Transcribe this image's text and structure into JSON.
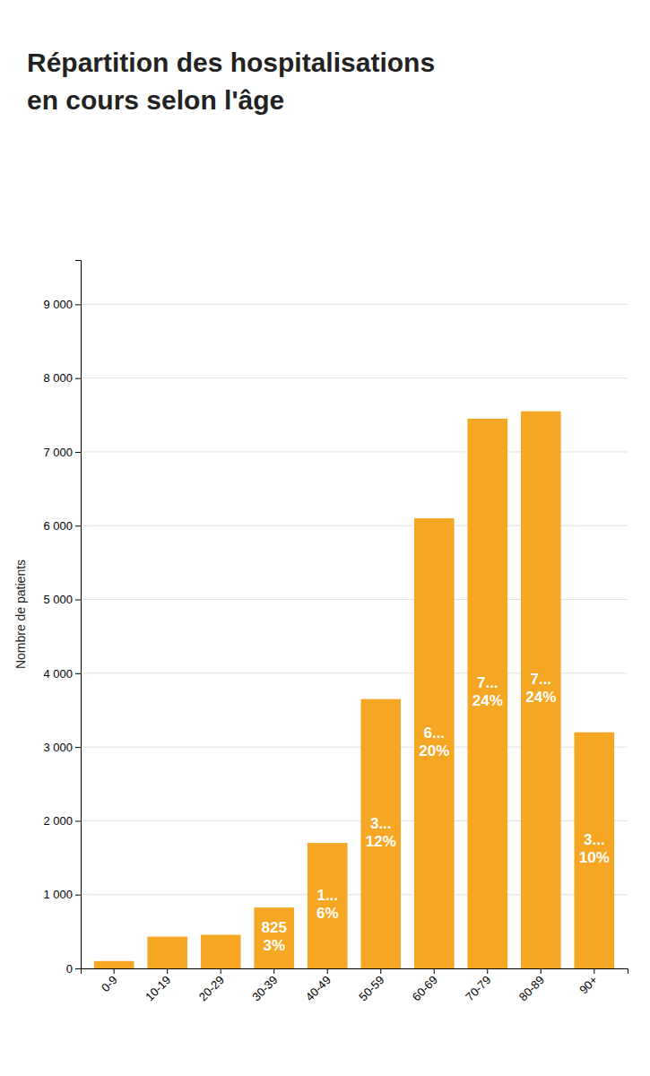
{
  "chart_data": {
    "type": "bar",
    "title": "Répartition des hospitalisations",
    "subtitle": "en cours selon l'âge",
    "y_label": "Nombre de patients",
    "categories": [
      "0-9",
      "10-19",
      "20-29",
      "30-39",
      "40-49",
      "50-59",
      "60-69",
      "70-79",
      "80-89",
      "90+"
    ],
    "values": [
      100,
      430,
      455,
      825,
      1700,
      3650,
      6100,
      7450,
      7550,
      3200
    ],
    "color": "#F5A623",
    "ylim": [
      0,
      9600
    ],
    "yticks": [
      0,
      {
        "value": 1000,
        "label": "1 000"
      },
      {
        "value": 2000,
        "label": "2 000"
      },
      {
        "value": 3000,
        "label": "3 000"
      },
      {
        "value": 4000,
        "label": "4 000"
      },
      {
        "value": 5000,
        "label": "5 000"
      },
      {
        "value": 6000,
        "label": "6 000"
      },
      {
        "value": 7000,
        "label": "7 000"
      },
      {
        "value": 8000,
        "label": "8 000"
      },
      {
        "value": 9000,
        "label": "9 000"
      }
    ],
    "grid": true,
    "annotations": [
      {
        "category": "30-39",
        "lines": [
          "825",
          "3%"
        ]
      },
      {
        "category": "40-49",
        "lines": [
          "1...",
          "6%"
        ]
      },
      {
        "category": "50-59",
        "lines": [
          "3...",
          "12%"
        ]
      },
      {
        "category": "60-69",
        "lines": [
          "6...",
          "20%"
        ]
      },
      {
        "category": "70-79",
        "lines": [
          "7...",
          "24%"
        ]
      },
      {
        "category": "80-89",
        "lines": [
          "7...",
          "24%"
        ]
      },
      {
        "category": "90+",
        "lines": [
          "3...",
          "10%"
        ]
      }
    ]
  }
}
